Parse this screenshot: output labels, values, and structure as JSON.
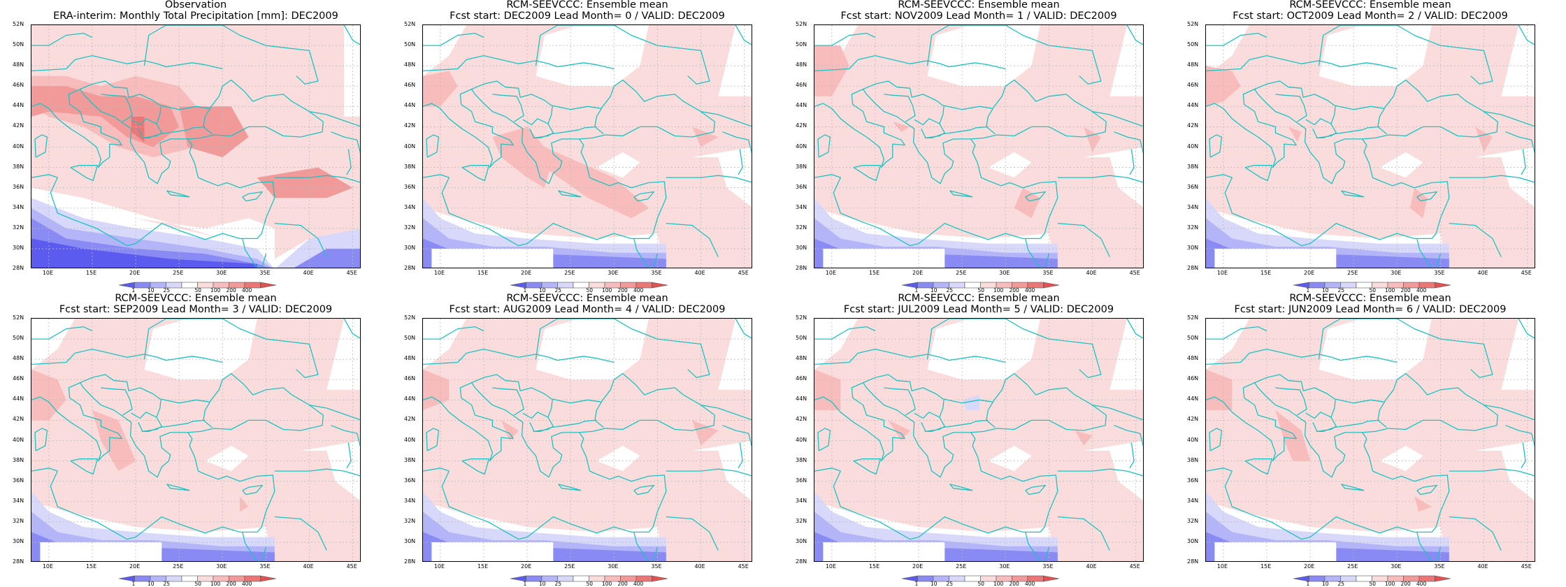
{
  "panels": [
    {
      "title1": "Observation",
      "title2": "ERA-interim:  Monthly Total Precipitation [mm]: DEC2009",
      "variant": "obs"
    },
    {
      "title1": "RCM-SEEVCCC: Ensemble mean",
      "title2": "Fcst start: DEC2009   Lead Month= 0 / VALID: DEC2009",
      "variant": "f0"
    },
    {
      "title1": "RCM-SEEVCCC: Ensemble mean",
      "title2": "Fcst start: NOV2009   Lead Month= 1 / VALID: DEC2009",
      "variant": "f1"
    },
    {
      "title1": "RCM-SEEVCCC: Ensemble mean",
      "title2": "Fcst start: OCT2009   Lead Month= 2 / VALID: DEC2009",
      "variant": "f2"
    },
    {
      "title1": "RCM-SEEVCCC: Ensemble mean",
      "title2": "Fcst start: SEP2009   Lead Month= 3 / VALID: DEC2009",
      "variant": "f3"
    },
    {
      "title1": "RCM-SEEVCCC: Ensemble mean",
      "title2": "Fcst start: AUG2009   Lead Month= 4 / VALID: DEC2009",
      "variant": "f4"
    },
    {
      "title1": "RCM-SEEVCCC: Ensemble mean",
      "title2": "Fcst start: JUL2009   Lead Month= 5 / VALID: DEC2009",
      "variant": "f5"
    },
    {
      "title1": "RCM-SEEVCCC: Ensemble mean",
      "title2": "Fcst start: JUN2009   Lead Month= 6 / VALID: DEC2009",
      "variant": "f6"
    }
  ],
  "lat_ticks": [
    "52N",
    "50N",
    "48N",
    "46N",
    "44N",
    "42N",
    "40N",
    "38N",
    "36N",
    "34N",
    "32N",
    "30N",
    "28N"
  ],
  "lon_ticks": [
    "10E",
    "15E",
    "20E",
    "25E",
    "30E",
    "35E",
    "40E",
    "45E"
  ],
  "colorbar": {
    "labels": [
      "1",
      "10",
      "25",
      "50",
      "100",
      "200",
      "400"
    ],
    "colors": [
      "#5b5bf0",
      "#8a8af5",
      "#b4b4f8",
      "#d8d8fb",
      "#ffffff",
      "#fbdcdc",
      "#f8bcbc",
      "#f29a9a",
      "#ec7676",
      "#e65050"
    ]
  },
  "map_colors": {
    "coast": "#19c3c3",
    "grid": "#bbbbbb"
  }
}
